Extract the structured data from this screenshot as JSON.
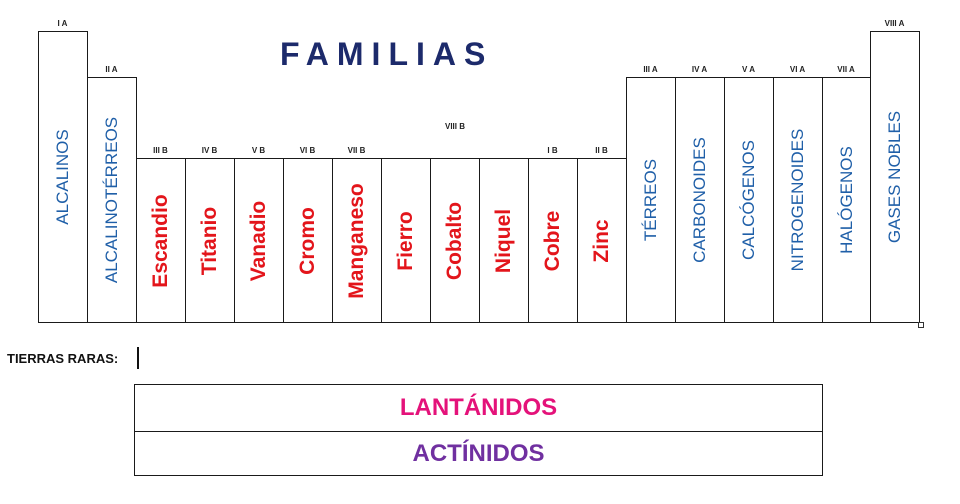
{
  "title": "FAMILIAS",
  "colors": {
    "blue": "#1f5fa8",
    "red": "#e3151b",
    "lantanidos": "#e4127a",
    "actinidos": "#7030a0",
    "title": "#1c2a6b"
  },
  "columns": [
    {
      "group": "I A",
      "name": "ALCALINOS",
      "style": "blue"
    },
    {
      "group": "II A",
      "name": "ALCALINOTÉRREOS",
      "style": "blue"
    },
    {
      "group": "III B",
      "name": "Escandio",
      "style": "red"
    },
    {
      "group": "IV B",
      "name": "Titanio",
      "style": "red"
    },
    {
      "group": "V B",
      "name": "Vanadio",
      "style": "red"
    },
    {
      "group": "VI B",
      "name": "Cromo",
      "style": "red"
    },
    {
      "group": "VII B",
      "name": "Manganeso",
      "style": "red"
    },
    {
      "group": "",
      "name": "Fierro",
      "style": "red"
    },
    {
      "group": "",
      "name": "Cobalto",
      "style": "red"
    },
    {
      "group": "",
      "name": "Niquel",
      "style": "red"
    },
    {
      "group": "I B",
      "name": "Cobre",
      "style": "red"
    },
    {
      "group": "II B",
      "name": "Zinc",
      "style": "red"
    },
    {
      "group": "III A",
      "name": "TÉRREOS",
      "style": "blue"
    },
    {
      "group": "IV A",
      "name": "CARBONOIDES",
      "style": "blue"
    },
    {
      "group": "V A",
      "name": "CALCÓGENOS",
      "style": "blue"
    },
    {
      "group": "VI A",
      "name": "NITROGENOIDES",
      "style": "blue"
    },
    {
      "group": "VII A",
      "name": "HALÓGENOS",
      "style": "blue"
    },
    {
      "group": "VIII A",
      "name": "GASES NOBLES",
      "style": "blue"
    }
  ],
  "group_viii_b": "VIII B",
  "tierras_raras_label": "TIERRAS  RARAS:",
  "lantanidos": "LANTÁNIDOS",
  "actinidos": "ACTÍNIDOS"
}
